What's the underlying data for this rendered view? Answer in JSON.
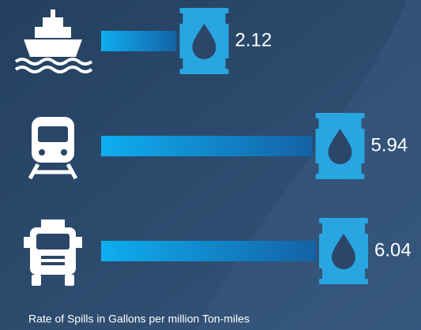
{
  "chart_data": {
    "type": "bar",
    "orientation": "horizontal",
    "title": "Rate of Spills in Gallons per million Ton-miles",
    "values": [
      2.12,
      5.94,
      6.04
    ],
    "color": "#1a8fd6"
  }
}
